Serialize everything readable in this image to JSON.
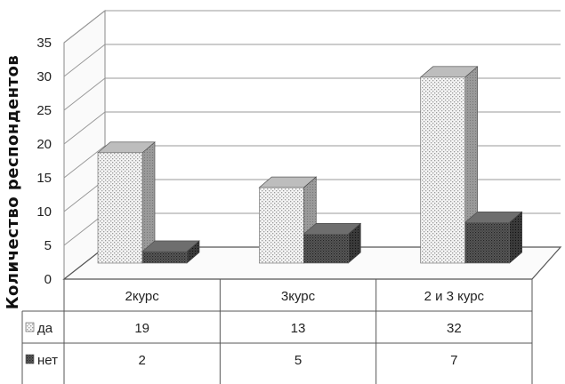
{
  "chart_data": {
    "type": "bar",
    "style": "3d-clustered-column",
    "ylabel": "Количество респондентов",
    "xlabel": "",
    "ylim": [
      0,
      35
    ],
    "yticks": [
      0,
      5,
      10,
      15,
      20,
      25,
      30,
      35
    ],
    "grid": true,
    "legend": "data-table",
    "categories": [
      "2курс",
      "3курс",
      "2 и 3 курс"
    ],
    "series": [
      {
        "name": "да",
        "values": [
          19,
          13,
          32
        ],
        "color": "#e4e4e4",
        "pattern": "dotted"
      },
      {
        "name": "нет",
        "values": [
          2,
          5,
          7
        ],
        "color": "#555555",
        "pattern": "dark"
      }
    ]
  }
}
